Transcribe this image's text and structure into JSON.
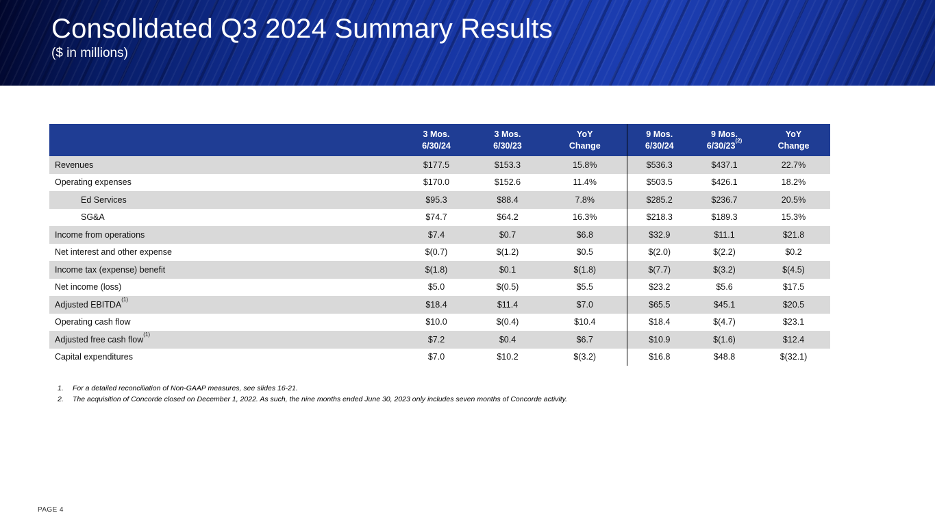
{
  "slide": {
    "title": "Consolidated Q3 2024 Summary Results",
    "subtitle": "($ in millions)",
    "page_label": "PAGE 4"
  },
  "colors": {
    "banner_blue": "#1c3eb2",
    "banner_dark_edge": "#01062b",
    "table_header_blue": "#1f3d94",
    "row_stripe_gray": "#d9d9d9",
    "divider_black": "#000000"
  },
  "table": {
    "col_headers": [
      {
        "line1": "3 Mos.",
        "line2": "6/30/24",
        "sup": ""
      },
      {
        "line1": "3 Mos.",
        "line2": "6/30/23",
        "sup": ""
      },
      {
        "line1": "YoY",
        "line2": "Change",
        "sup": ""
      },
      {
        "line1": "9 Mos.",
        "line2": "6/30/24",
        "sup": ""
      },
      {
        "line1": "9 Mos.",
        "line2": "6/30/23",
        "sup": "(2)"
      },
      {
        "line1": "YoY",
        "line2": "Change",
        "sup": ""
      }
    ],
    "rows": [
      {
        "label": "Revenues",
        "sup": "",
        "indent": false,
        "shaded": true,
        "values": [
          "$177.5",
          "$153.3",
          "15.8%",
          "$536.3",
          "$437.1",
          "22.7%"
        ]
      },
      {
        "label": "Operating expenses",
        "sup": "",
        "indent": false,
        "shaded": false,
        "values": [
          "$170.0",
          "$152.6",
          "11.4%",
          "$503.5",
          "$426.1",
          "18.2%"
        ]
      },
      {
        "label": "Ed Services",
        "sup": "",
        "indent": true,
        "shaded": true,
        "values": [
          "$95.3",
          "$88.4",
          "7.8%",
          "$285.2",
          "$236.7",
          "20.5%"
        ]
      },
      {
        "label": "SG&A",
        "sup": "",
        "indent": true,
        "shaded": false,
        "values": [
          "$74.7",
          "$64.2",
          "16.3%",
          "$218.3",
          "$189.3",
          "15.3%"
        ]
      },
      {
        "label": "Income from operations",
        "sup": "",
        "indent": false,
        "shaded": true,
        "values": [
          "$7.4",
          "$0.7",
          "$6.8",
          "$32.9",
          "$11.1",
          "$21.8"
        ]
      },
      {
        "label": "Net interest and other expense",
        "sup": "",
        "indent": false,
        "shaded": false,
        "values": [
          "$(0.7)",
          "$(1.2)",
          "$0.5",
          "$(2.0)",
          "$(2.2)",
          "$0.2"
        ]
      },
      {
        "label": "Income tax (expense) benefit",
        "sup": "",
        "indent": false,
        "shaded": true,
        "values": [
          "$(1.8)",
          "$0.1",
          "$(1.8)",
          "$(7.7)",
          "$(3.2)",
          "$(4.5)"
        ]
      },
      {
        "label": "Net income (loss)",
        "sup": "",
        "indent": false,
        "shaded": false,
        "values": [
          "$5.0",
          "$(0.5)",
          "$5.5",
          "$23.2",
          "$5.6",
          "$17.5"
        ]
      },
      {
        "label": "Adjusted EBITDA",
        "sup": "(1)",
        "indent": false,
        "shaded": true,
        "values": [
          "$18.4",
          "$11.4",
          "$7.0",
          "$65.5",
          "$45.1",
          "$20.5"
        ]
      },
      {
        "label": "Operating cash flow",
        "sup": "",
        "indent": false,
        "shaded": false,
        "values": [
          "$10.0",
          "$(0.4)",
          "$10.4",
          "$18.4",
          "$(4.7)",
          "$23.1"
        ]
      },
      {
        "label": "Adjusted free cash flow",
        "sup": "(1)",
        "indent": false,
        "shaded": true,
        "values": [
          "$7.2",
          "$0.4",
          "$6.7",
          "$10.9",
          "$(1.6)",
          "$12.4"
        ]
      },
      {
        "label": "Capital expenditures",
        "sup": "",
        "indent": false,
        "shaded": false,
        "values": [
          "$7.0",
          "$10.2",
          "$(3.2)",
          "$16.8",
          "$48.8",
          "$(32.1)"
        ]
      }
    ]
  },
  "footnotes": [
    {
      "num": "1.",
      "text": "For a detailed reconciliation of Non-GAAP measures, see slides 16-21."
    },
    {
      "num": "2.",
      "text": "The acquisition of Concorde closed on December 1, 2022. As such, the nine months ended June 30, 2023 only includes seven months of Concorde activity."
    }
  ]
}
